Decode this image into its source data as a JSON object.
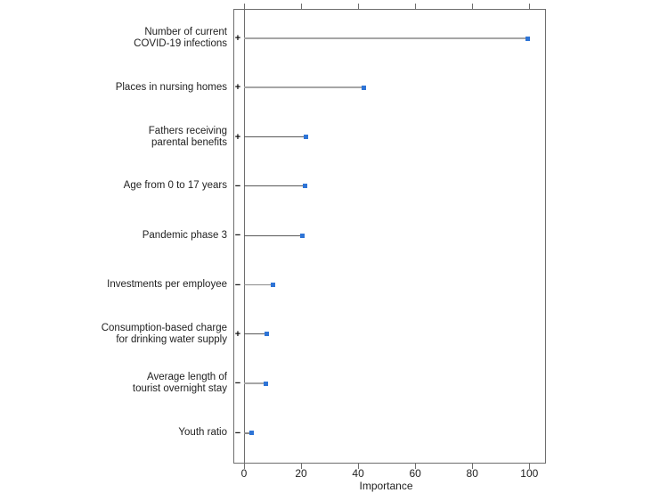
{
  "chart_data": {
    "type": "bar",
    "subtype": "horizontal-lollipop",
    "title": "",
    "xlabel": "Importance",
    "ylabel": "",
    "xlim": [
      -3.5,
      106
    ],
    "xticks": [
      0,
      20,
      40,
      60,
      80,
      100
    ],
    "grid": false,
    "legend": "none",
    "categories": [
      "Number of current\nCOVID-19 infections",
      "Places in nursing homes",
      "Fathers receiving\nparental benefits",
      "Age from 0 to 17 years",
      "Pandemic phase 3",
      "Investments per employee",
      "Consumption-based charge\nfor drinking water supply",
      "Average length of\ntourist overnight stay",
      "Youth ratio"
    ],
    "signs": [
      "+",
      "+",
      "+",
      "−",
      "−",
      "−",
      "+",
      "−",
      "−"
    ],
    "values": [
      99.5,
      42,
      21.7,
      21.4,
      20.4,
      10.3,
      8.0,
      7.7,
      2.5
    ],
    "colors": {
      "marker": "#2e74d6",
      "axis": "#6e6e6e",
      "text": "#1f1f1f",
      "background": "#ffffff"
    },
    "stems": [
      {
        "color": "#a6a6a6",
        "width": 2
      },
      {
        "color": "#a6a6a6",
        "width": 2
      },
      {
        "color": "#595959",
        "width": 1
      },
      {
        "color": "#595959",
        "width": 1
      },
      {
        "color": "#595959",
        "width": 1
      },
      {
        "color": "#8c8c8c",
        "width": 1
      },
      {
        "color": "#595959",
        "width": 1
      },
      {
        "color": "#a6a6a6",
        "width": 2
      },
      {
        "color": "#8c8c8c",
        "width": 2
      }
    ]
  }
}
